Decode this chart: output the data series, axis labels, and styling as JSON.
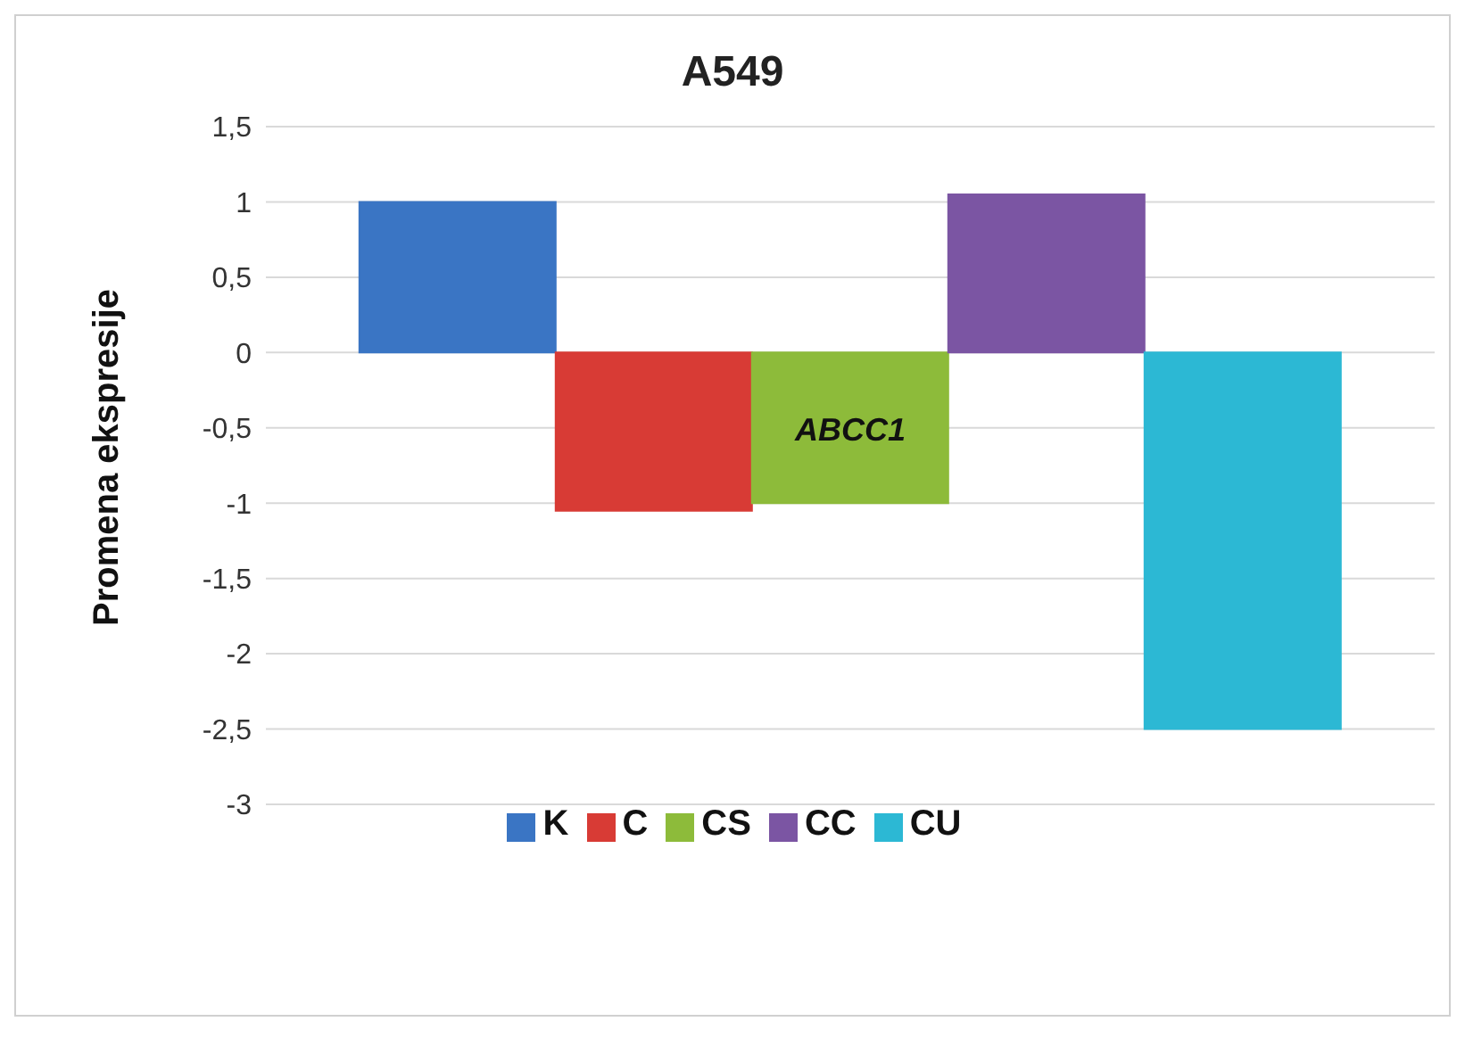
{
  "chart_data": {
    "type": "bar",
    "title": "A549",
    "ylabel": "Promena ekspresije",
    "categories": [
      "ABCC1"
    ],
    "series": [
      {
        "name": "K",
        "color": "#3a75c4",
        "values": [
          1
        ]
      },
      {
        "name": "C",
        "color": "#d83b35",
        "values": [
          -1.05
        ]
      },
      {
        "name": "CS",
        "color": "#8dbb3a",
        "values": [
          -1
        ]
      },
      {
        "name": "CC",
        "color": "#7b55a3",
        "values": [
          1.05
        ]
      },
      {
        "name": "CU",
        "color": "#2cb8d4",
        "values": [
          -2.5
        ]
      }
    ],
    "ylim": [
      -3,
      1.5
    ],
    "yticks": [
      {
        "value": -3,
        "label": "-3"
      },
      {
        "value": -2.5,
        "label": "-2,5"
      },
      {
        "value": -2,
        "label": "-2"
      },
      {
        "value": -1.5,
        "label": "-1,5"
      },
      {
        "value": -1,
        "label": "-1"
      },
      {
        "value": -0.5,
        "label": "-0,5"
      },
      {
        "value": 0,
        "label": "0"
      },
      {
        "value": 0.5,
        "label": "0,5"
      },
      {
        "value": 1,
        "label": "1"
      },
      {
        "value": 1.5,
        "label": "1,5"
      }
    ],
    "grid": "y",
    "legend": "bottom"
  }
}
